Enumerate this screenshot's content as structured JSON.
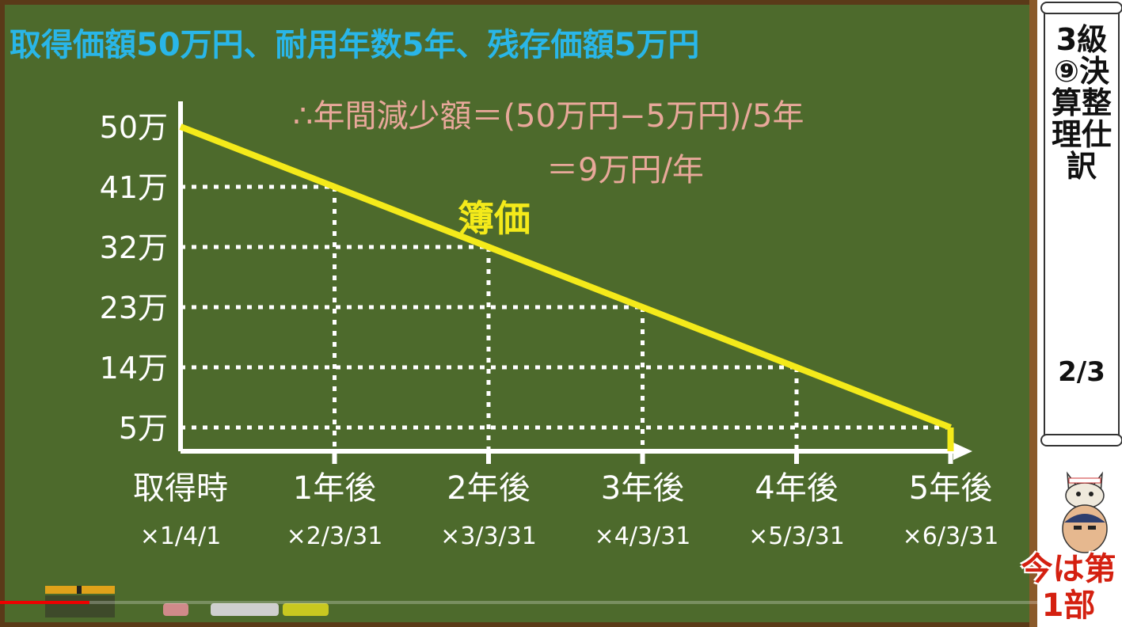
{
  "header": {
    "headline": "取得価額50万円、耐用年数5年、残存価額5万円",
    "formula_line1": "∴年間減少額＝(50万円−5万円)/5年",
    "formula_line2": "＝9万円/年"
  },
  "sidebar": {
    "title": "3級⑨決算整理仕訳",
    "page": "2/3",
    "badge": "今は第1部"
  },
  "video": {
    "progress": 0.086
  },
  "colors": {
    "board": "#4d6a2c",
    "line": "#f4ea1a",
    "headline": "#29b6e8",
    "formula": "#e8a89a",
    "chalk": "#ffffff"
  },
  "chart_data": {
    "type": "line",
    "series": [
      {
        "name": "簿価",
        "values": [
          50,
          41,
          32,
          23,
          14,
          5
        ]
      }
    ],
    "categories": [
      "取得時",
      "1年後",
      "2年後",
      "3年後",
      "4年後",
      "5年後"
    ],
    "dates": [
      "×1/4/1",
      "×2/3/31",
      "×3/3/31",
      "×4/3/31",
      "×5/3/31",
      "×6/3/31"
    ],
    "yticks": [
      {
        "value": 50,
        "label": "50万"
      },
      {
        "value": 41,
        "label": "41万"
      },
      {
        "value": 32,
        "label": "32万"
      },
      {
        "value": 23,
        "label": "23万"
      },
      {
        "value": 14,
        "label": "14万"
      },
      {
        "value": 5,
        "label": "5万"
      }
    ],
    "ylim": [
      0,
      50
    ],
    "grid": "dotted"
  }
}
